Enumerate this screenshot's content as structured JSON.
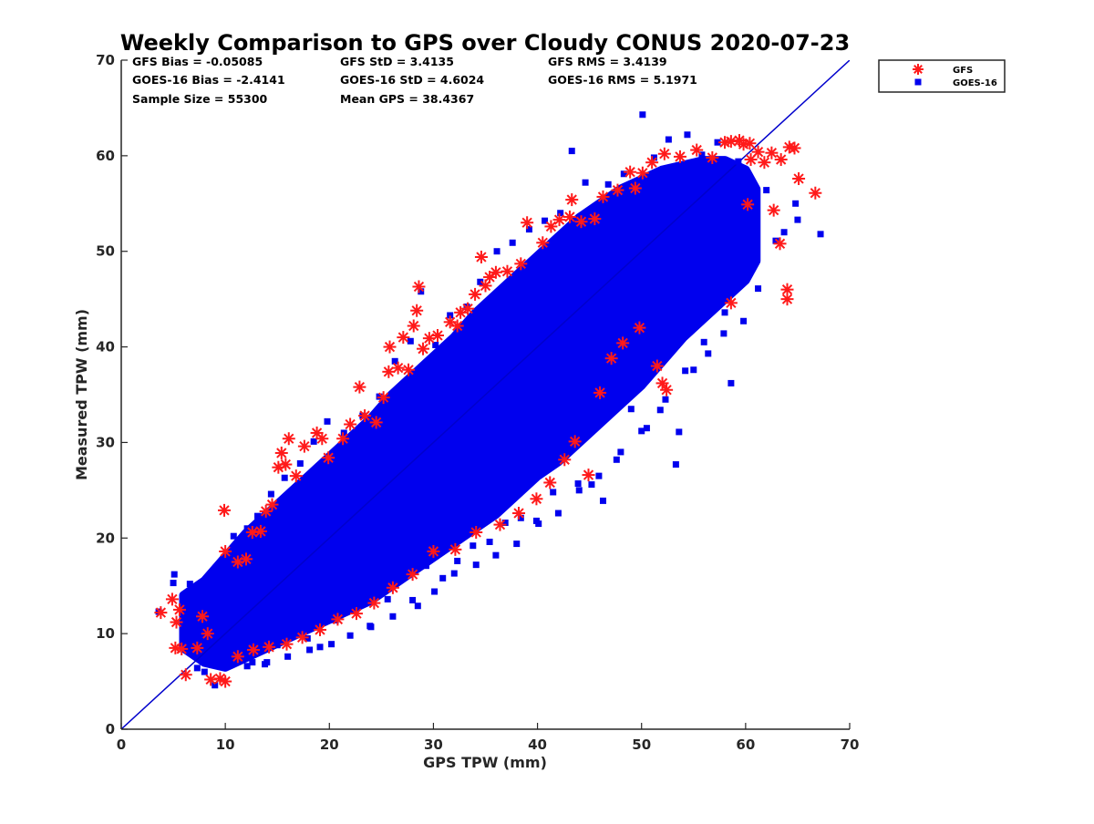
{
  "chart_data": {
    "type": "scatter",
    "title": "Weekly Comparison to GPS over Cloudy CONUS 2020-07-23",
    "xlabel": "GPS TPW (mm)",
    "ylabel": "Measured TPW (mm)",
    "xlim": [
      0,
      70
    ],
    "ylim": [
      0,
      70
    ],
    "xticks": [
      "0",
      "10",
      "20",
      "30",
      "40",
      "50",
      "60",
      "70"
    ],
    "yticks": [
      "0",
      "10",
      "20",
      "30",
      "40",
      "50",
      "60",
      "70"
    ],
    "grid": false,
    "legend_position": "outside-top-right",
    "reference_line": {
      "x": [
        0,
        70
      ],
      "y": [
        0,
        70
      ],
      "color": "#0000cc"
    },
    "stats": [
      [
        "GFS Bias = -0.05085",
        "GFS StD = 3.4135",
        "GFS RMS = 3.4139"
      ],
      [
        "GOES-16 Bias = -2.4141",
        "GOES-16 StD = 4.6024",
        "GOES-16 RMS = 5.1971"
      ],
      [
        "Sample Size = 55300",
        "Mean GPS = 38.4367",
        ""
      ]
    ],
    "series": [
      {
        "name": "GFS",
        "marker": "asterisk",
        "color": "#ff1a1a",
        "points": [
          [
            3.8,
            12.2
          ],
          [
            4.9,
            13.6
          ],
          [
            5.3,
            11.2
          ],
          [
            5.6,
            12.5
          ],
          [
            5.2,
            8.5
          ],
          [
            5.8,
            8.4
          ],
          [
            6.2,
            5.7
          ],
          [
            7.3,
            8.5
          ],
          [
            7.8,
            11.8
          ],
          [
            8.3,
            10.0
          ],
          [
            8.6,
            5.2
          ],
          [
            9.5,
            5.3
          ],
          [
            10.0,
            5.0
          ],
          [
            9.9,
            22.9
          ],
          [
            10.0,
            18.6
          ],
          [
            11.2,
            17.5
          ],
          [
            12.0,
            17.8
          ],
          [
            12.6,
            20.6
          ],
          [
            13.4,
            20.7
          ],
          [
            13.9,
            22.8
          ],
          [
            14.5,
            23.5
          ],
          [
            15.1,
            27.4
          ],
          [
            15.4,
            28.9
          ],
          [
            15.8,
            27.7
          ],
          [
            16.1,
            30.4
          ],
          [
            16.8,
            26.5
          ],
          [
            17.6,
            29.6
          ],
          [
            18.8,
            31.0
          ],
          [
            19.3,
            30.4
          ],
          [
            19.9,
            28.4
          ],
          [
            21.3,
            30.4
          ],
          [
            22.0,
            31.9
          ],
          [
            22.9,
            35.8
          ],
          [
            23.4,
            32.8
          ],
          [
            24.5,
            32.1
          ],
          [
            25.2,
            34.7
          ],
          [
            25.7,
            37.4
          ],
          [
            25.8,
            40.0
          ],
          [
            26.6,
            37.8
          ],
          [
            27.1,
            41.0
          ],
          [
            27.6,
            37.6
          ],
          [
            28.1,
            42.2
          ],
          [
            28.4,
            43.8
          ],
          [
            28.6,
            46.3
          ],
          [
            29.0,
            39.8
          ],
          [
            29.6,
            40.9
          ],
          [
            30.4,
            41.2
          ],
          [
            31.6,
            42.6
          ],
          [
            32.3,
            42.2
          ],
          [
            32.6,
            43.6
          ],
          [
            33.3,
            44.0
          ],
          [
            34.0,
            45.5
          ],
          [
            34.6,
            49.4
          ],
          [
            35.0,
            46.4
          ],
          [
            35.4,
            47.3
          ],
          [
            36.0,
            47.8
          ],
          [
            37.1,
            47.9
          ],
          [
            38.4,
            48.7
          ],
          [
            39.0,
            53.0
          ],
          [
            40.5,
            50.9
          ],
          [
            41.3,
            52.6
          ],
          [
            42.1,
            53.3
          ],
          [
            43.1,
            53.6
          ],
          [
            43.3,
            55.4
          ],
          [
            44.2,
            53.1
          ],
          [
            45.5,
            53.4
          ],
          [
            46.3,
            55.7
          ],
          [
            47.7,
            56.4
          ],
          [
            48.9,
            58.3
          ],
          [
            49.4,
            56.6
          ],
          [
            50.1,
            58.2
          ],
          [
            51.0,
            59.3
          ],
          [
            52.2,
            60.2
          ],
          [
            53.7,
            59.9
          ],
          [
            55.3,
            60.6
          ],
          [
            56.8,
            59.8
          ],
          [
            58.0,
            61.4
          ],
          [
            58.6,
            61.5
          ],
          [
            59.4,
            61.6
          ],
          [
            59.8,
            61.2
          ],
          [
            60.4,
            61.3
          ],
          [
            60.5,
            59.6
          ],
          [
            61.2,
            60.4
          ],
          [
            61.8,
            59.3
          ],
          [
            62.5,
            60.3
          ],
          [
            63.4,
            59.6
          ],
          [
            64.2,
            60.9
          ],
          [
            64.7,
            60.8
          ],
          [
            65.1,
            57.6
          ],
          [
            66.7,
            56.1
          ],
          [
            62.7,
            54.3
          ],
          [
            63.3,
            50.8
          ],
          [
            60.2,
            54.9
          ],
          [
            58.6,
            44.6
          ],
          [
            64.0,
            46.0
          ],
          [
            64.0,
            45.0
          ],
          [
            52.4,
            35.5
          ],
          [
            52.0,
            36.2
          ],
          [
            51.5,
            38.0
          ],
          [
            49.8,
            42.0
          ],
          [
            48.2,
            40.4
          ],
          [
            47.1,
            38.8
          ],
          [
            46.0,
            35.2
          ],
          [
            44.9,
            26.6
          ],
          [
            43.6,
            30.1
          ],
          [
            42.6,
            28.2
          ],
          [
            41.2,
            25.8
          ],
          [
            39.9,
            24.1
          ],
          [
            38.2,
            22.6
          ],
          [
            36.4,
            21.4
          ],
          [
            34.1,
            20.6
          ],
          [
            32.1,
            18.8
          ],
          [
            30.0,
            18.6
          ],
          [
            28.0,
            16.2
          ],
          [
            26.1,
            14.8
          ],
          [
            24.3,
            13.2
          ],
          [
            22.6,
            12.1
          ],
          [
            20.8,
            11.5
          ],
          [
            19.1,
            10.4
          ],
          [
            17.4,
            9.6
          ],
          [
            15.9,
            8.9
          ],
          [
            14.2,
            8.6
          ],
          [
            12.7,
            8.3
          ],
          [
            11.2,
            7.6
          ]
        ]
      },
      {
        "name": "GOES-16",
        "marker": "square",
        "color": "#0000ee",
        "points": [
          [
            3.6,
            12.3
          ],
          [
            5.1,
            16.2
          ],
          [
            5.0,
            15.3
          ],
          [
            6.3,
            13.8
          ],
          [
            6.6,
            15.2
          ],
          [
            7.3,
            6.4
          ],
          [
            8.0,
            6.0
          ],
          [
            8.6,
            15.4
          ],
          [
            9.0,
            4.6
          ],
          [
            9.7,
            7.5
          ],
          [
            10.2,
            18.4
          ],
          [
            10.8,
            20.2
          ],
          [
            11.2,
            16.5
          ],
          [
            11.8,
            8.1
          ],
          [
            12.1,
            21.0
          ],
          [
            12.6,
            7.0
          ],
          [
            13.1,
            22.3
          ],
          [
            13.8,
            6.8
          ],
          [
            14.4,
            24.6
          ],
          [
            15.0,
            8.8
          ],
          [
            15.7,
            26.3
          ],
          [
            16.3,
            10.2
          ],
          [
            17.2,
            27.8
          ],
          [
            17.9,
            9.5
          ],
          [
            18.5,
            30.1
          ],
          [
            19.1,
            8.6
          ],
          [
            19.8,
            32.2
          ],
          [
            20.6,
            11.4
          ],
          [
            21.4,
            31.0
          ],
          [
            22.3,
            12.5
          ],
          [
            23.2,
            32.8
          ],
          [
            23.9,
            10.8
          ],
          [
            24.8,
            34.8
          ],
          [
            25.6,
            13.6
          ],
          [
            26.3,
            38.5
          ],
          [
            27.1,
            15.9
          ],
          [
            27.8,
            40.6
          ],
          [
            28.5,
            12.9
          ],
          [
            28.8,
            45.8
          ],
          [
            29.3,
            17.1
          ],
          [
            30.2,
            40.2
          ],
          [
            30.9,
            15.8
          ],
          [
            31.6,
            43.3
          ],
          [
            32.3,
            17.6
          ],
          [
            33.2,
            44.2
          ],
          [
            33.8,
            19.2
          ],
          [
            34.5,
            46.8
          ],
          [
            35.4,
            19.6
          ],
          [
            36.1,
            50.0
          ],
          [
            36.9,
            21.6
          ],
          [
            37.6,
            50.9
          ],
          [
            38.4,
            22.1
          ],
          [
            39.2,
            52.3
          ],
          [
            39.9,
            21.8
          ],
          [
            40.7,
            53.2
          ],
          [
            41.5,
            24.8
          ],
          [
            42.2,
            54.0
          ],
          [
            43.3,
            60.5
          ],
          [
            43.9,
            25.7
          ],
          [
            44.6,
            57.2
          ],
          [
            45.2,
            25.6
          ],
          [
            46.3,
            23.9
          ],
          [
            46.8,
            57.0
          ],
          [
            47.6,
            28.2
          ],
          [
            48.3,
            58.1
          ],
          [
            49.0,
            33.5
          ],
          [
            50.1,
            64.3
          ],
          [
            50.5,
            31.5
          ],
          [
            51.2,
            59.8
          ],
          [
            51.8,
            33.4
          ],
          [
            52.6,
            61.7
          ],
          [
            53.3,
            27.7
          ],
          [
            53.6,
            31.1
          ],
          [
            54.4,
            62.2
          ],
          [
            55.0,
            37.6
          ],
          [
            55.8,
            60.1
          ],
          [
            56.4,
            39.3
          ],
          [
            57.3,
            61.4
          ],
          [
            57.9,
            41.4
          ],
          [
            58.6,
            36.2
          ],
          [
            59.3,
            59.4
          ],
          [
            59.8,
            42.7
          ],
          [
            60.5,
            54.0
          ],
          [
            61.2,
            46.1
          ],
          [
            62.0,
            56.4
          ],
          [
            62.9,
            51.1
          ],
          [
            63.7,
            52.0
          ],
          [
            64.8,
            55.0
          ],
          [
            65.0,
            53.3
          ],
          [
            67.2,
            51.8
          ],
          [
            60.0,
            47.5
          ],
          [
            58.0,
            43.6
          ],
          [
            56.0,
            40.5
          ],
          [
            54.2,
            37.5
          ],
          [
            52.3,
            34.5
          ],
          [
            50.0,
            31.2
          ],
          [
            48.0,
            29.0
          ],
          [
            45.9,
            26.5
          ],
          [
            44.0,
            25.0
          ],
          [
            42.0,
            22.6
          ],
          [
            40.1,
            21.5
          ],
          [
            38.0,
            19.4
          ],
          [
            36.0,
            18.2
          ],
          [
            34.1,
            17.2
          ],
          [
            32.0,
            16.3
          ],
          [
            30.1,
            14.4
          ],
          [
            28.0,
            13.5
          ],
          [
            26.1,
            11.8
          ],
          [
            24.0,
            10.7
          ],
          [
            22.0,
            9.8
          ],
          [
            20.2,
            8.9
          ],
          [
            18.1,
            8.3
          ],
          [
            16.0,
            7.6
          ],
          [
            14.0,
            7.0
          ],
          [
            12.1,
            6.6
          ]
        ]
      }
    ],
    "density_band": {
      "description_units": "GPS TPW (mm) -> measured TPW band (mm)",
      "x": [
        6,
        8,
        10,
        12,
        14,
        16,
        18,
        20,
        22,
        24,
        26,
        28,
        30,
        32,
        34,
        36,
        38,
        40,
        42,
        44,
        46,
        48,
        50,
        52,
        54,
        56,
        58,
        60,
        61
      ],
      "lower": [
        8.5,
        7.0,
        6.5,
        7.5,
        8.5,
        9.5,
        10.5,
        11.5,
        12.5,
        13.5,
        15.0,
        16.5,
        18.0,
        19.5,
        21.0,
        22.5,
        24.5,
        26.5,
        28.0,
        30.0,
        32.0,
        34.0,
        36.0,
        38.5,
        41.0,
        43.0,
        45.0,
        47.0,
        49.0
      ],
      "upper": [
        14.0,
        15.5,
        18.0,
        20.5,
        22.5,
        24.5,
        26.5,
        28.5,
        30.5,
        32.5,
        35.0,
        37.0,
        39.0,
        41.0,
        43.5,
        45.5,
        47.5,
        49.5,
        51.5,
        53.5,
        55.0,
        56.5,
        57.5,
        58.5,
        59.0,
        59.5,
        59.5,
        58.5,
        56.5
      ]
    }
  }
}
